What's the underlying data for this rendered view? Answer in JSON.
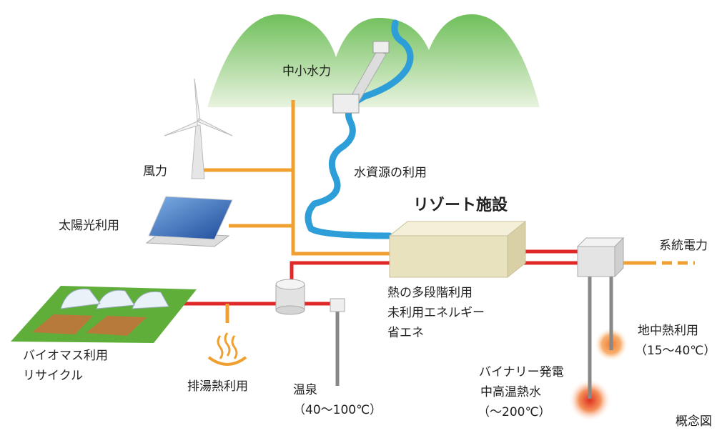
{
  "labels": {
    "hydro": "中小水力",
    "wind": "風力",
    "solar": "太陽光利用",
    "water": "水資源の利用",
    "resort": "リゾート施設",
    "grid": "系統電力",
    "heat_use": [
      "熱の多段階利用",
      "未利用エネルギー",
      "省エネ"
    ],
    "biomass": [
      "バイオマス利用",
      "リサイクル"
    ],
    "waste_heat": "排湯熱利用",
    "hot_spring": [
      "温泉",
      "（40～100℃）"
    ],
    "ground_heat": [
      "地中熱利用",
      "（15～40℃）"
    ],
    "binary": [
      "バイナリー発電",
      "中高温熱水",
      "（～200℃）"
    ],
    "caption": "概念図"
  }
}
